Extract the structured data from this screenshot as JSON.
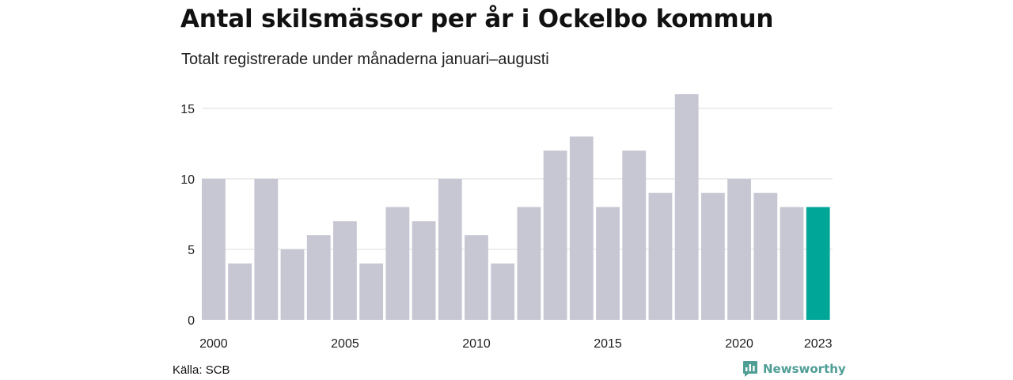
{
  "header": {
    "title": "Antal skilsmässor per år i Ockelbo kommun",
    "subtitle": "Totalt registrerade under månaderna januari–augusti"
  },
  "footer": {
    "source": "Källa: SCB",
    "brand_name": "Newsworthy",
    "brand_icon": "newsworthy-logo-icon"
  },
  "colors": {
    "bar": "#c7c6d3",
    "highlight": "#00a698",
    "grid": "#dddddd",
    "brand": "#4f9e96"
  },
  "chart_data": {
    "type": "bar",
    "title": "Antal skilsmässor per år i Ockelbo kommun",
    "subtitle": "Totalt registrerade under månaderna januari–augusti",
    "xlabel": "",
    "ylabel": "",
    "categories": [
      "2000",
      "2001",
      "2002",
      "2003",
      "2004",
      "2005",
      "2006",
      "2007",
      "2008",
      "2009",
      "2010",
      "2011",
      "2012",
      "2013",
      "2014",
      "2015",
      "2016",
      "2017",
      "2018",
      "2019",
      "2020",
      "2021",
      "2022",
      "2023"
    ],
    "values": [
      10,
      4,
      10,
      5,
      6,
      7,
      4,
      8,
      7,
      10,
      6,
      4,
      8,
      12,
      13,
      8,
      12,
      9,
      16,
      9,
      10,
      9,
      8,
      8
    ],
    "highlight": "2023",
    "ylim": [
      0,
      16
    ],
    "yticks": [
      0,
      5,
      10,
      15
    ],
    "xtick_labels": [
      "2000",
      "2005",
      "2010",
      "2015",
      "2020",
      "2023"
    ],
    "grid": true,
    "legend": "none"
  }
}
